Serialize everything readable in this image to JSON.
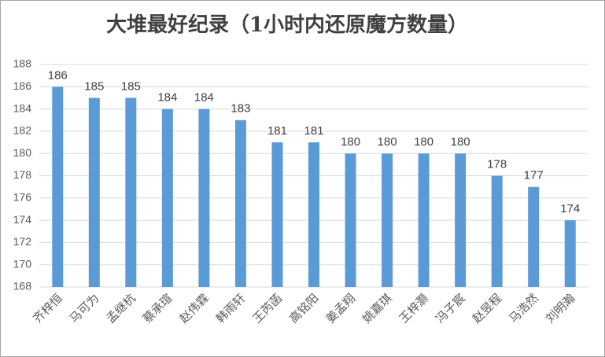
{
  "chart_data": {
    "type": "bar",
    "title": "大堆最好纪录（1小时内还原魔方数量）",
    "categories": [
      "齐梓恒",
      "马可为",
      "孟继杭",
      "蔡承瑄",
      "赵伟霖",
      "韩雨轩",
      "王芮菡",
      "高铭阳",
      "姜孟翔",
      "姚嘉琪",
      "王梓灏",
      "冯子宸",
      "赵昱程",
      "马浩然",
      "刘明瀚"
    ],
    "values": [
      186,
      185,
      185,
      184,
      184,
      183,
      181,
      181,
      180,
      180,
      180,
      180,
      178,
      177,
      174
    ],
    "color": "#5b9bd5",
    "ylim": [
      168,
      188
    ],
    "yticks": [
      168,
      170,
      172,
      174,
      176,
      178,
      180,
      182,
      184,
      186,
      188
    ],
    "grid": true
  }
}
